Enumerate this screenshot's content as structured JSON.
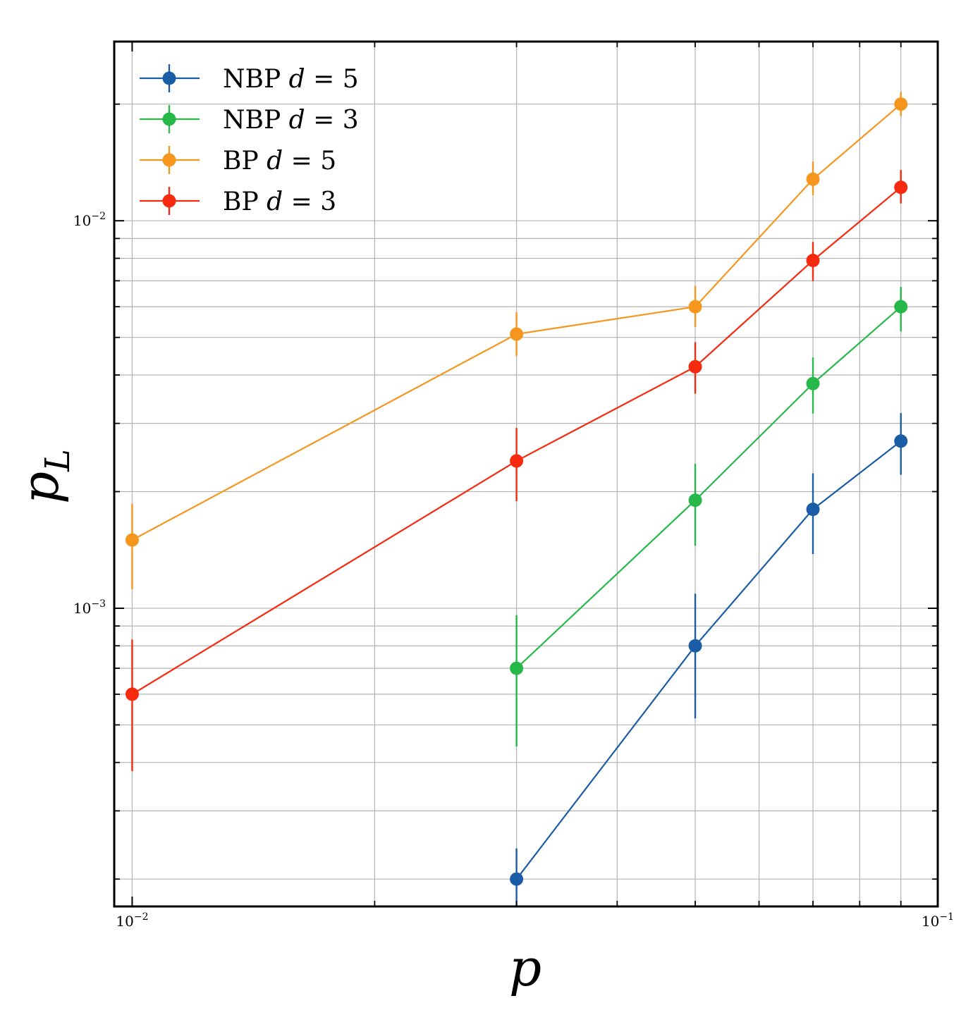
{
  "chart_data": {
    "type": "line",
    "xscale": "log",
    "yscale": "log",
    "xlabel": "p",
    "ylabel": "p_L",
    "xlim": [
      0.0095,
      0.1
    ],
    "ylim": [
      0.00017,
      0.029
    ],
    "grid": "both",
    "legend_position": "upper-left",
    "xticks": [
      {
        "value": 0.01,
        "base": "10",
        "exp": "−2"
      },
      {
        "value": 0.1,
        "base": "10",
        "exp": "−1"
      }
    ],
    "yticks": [
      {
        "value": 0.001,
        "base": "10",
        "exp": "−3"
      },
      {
        "value": 0.01,
        "base": "10",
        "exp": "−2"
      }
    ],
    "series": [
      {
        "name": "NBP d = 5",
        "label_prefix": "NBP ",
        "label_var": "d",
        "label_eq": " = 5",
        "color": "#1a5da6",
        "x": [
          0.03,
          0.05,
          0.07,
          0.09
        ],
        "y": [
          0.0002,
          0.0008,
          0.0018,
          0.0027
        ],
        "yerr_low": [
          0.00017,
          0.00052,
          0.00138,
          0.00221
        ],
        "yerr_high": [
          0.00024,
          0.00109,
          0.00223,
          0.00319
        ]
      },
      {
        "name": "NBP d = 3",
        "label_prefix": "NBP ",
        "label_var": "d",
        "label_eq": " = 3",
        "color": "#27b84a",
        "x": [
          0.03,
          0.05,
          0.07,
          0.09
        ],
        "y": [
          0.0007,
          0.0019,
          0.0038,
          0.006
        ],
        "yerr_low": [
          0.00044,
          0.00145,
          0.00318,
          0.00518
        ],
        "yerr_high": [
          0.00096,
          0.00236,
          0.00444,
          0.00675
        ]
      },
      {
        "name": "BP d = 5",
        "label_prefix": "BP ",
        "label_var": "d",
        "label_eq": " = 5",
        "color": "#f5961e",
        "x": [
          0.01,
          0.03,
          0.05,
          0.07,
          0.09
        ],
        "y": [
          0.0015,
          0.0051,
          0.006,
          0.0128,
          0.02
        ],
        "yerr_low": [
          0.00112,
          0.00448,
          0.00532,
          0.01165,
          0.01862
        ],
        "yerr_high": [
          0.00186,
          0.00581,
          0.00679,
          0.01422,
          0.02148
        ]
      },
      {
        "name": "BP d = 3",
        "label_prefix": "BP ",
        "label_var": "d",
        "label_eq": " = 3",
        "color": "#f52a0f",
        "x": [
          0.01,
          0.03,
          0.05,
          0.07,
          0.09
        ],
        "y": [
          0.0006,
          0.0024,
          0.0042,
          0.0079,
          0.0122
        ],
        "yerr_low": [
          0.00038,
          0.00189,
          0.00358,
          0.00699,
          0.01108
        ],
        "yerr_high": [
          0.00083,
          0.00292,
          0.00486,
          0.00882,
          0.01352
        ]
      }
    ]
  }
}
